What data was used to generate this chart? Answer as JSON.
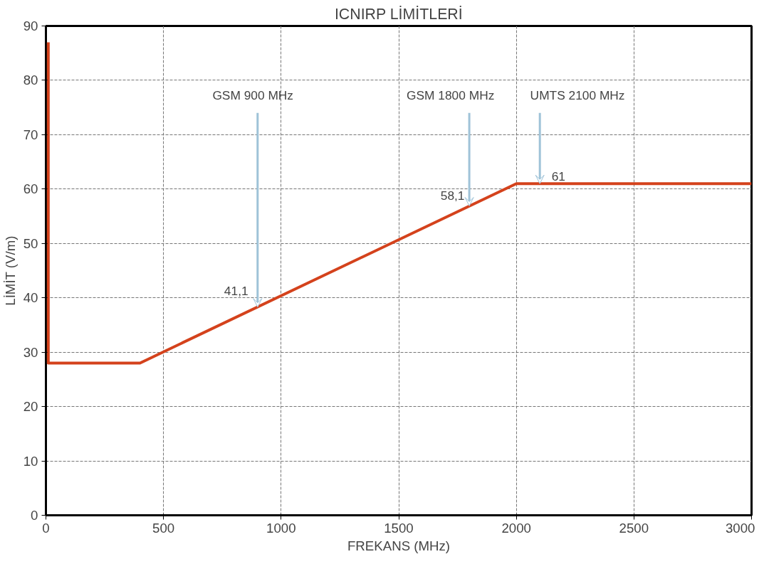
{
  "chart_data": {
    "type": "line",
    "title": "ICNIRP LİMİTLERİ",
    "xlabel": "FREKANS (MHz)",
    "ylabel": "LİMİT (V/m)",
    "series": [
      {
        "color": "#d4421c",
        "x": [
          10,
          10,
          400,
          2000,
          3000
        ],
        "values": [
          87,
          28,
          28,
          61,
          61
        ]
      }
    ],
    "xlim": [
      0,
      3000
    ],
    "ylim": [
      0,
      90
    ],
    "xticks": [
      0,
      500,
      1000,
      1500,
      2000,
      2500,
      3000
    ],
    "yticks": [
      0,
      10,
      20,
      30,
      40,
      50,
      60,
      70,
      80,
      90
    ],
    "grid": true,
    "marker": "none",
    "line_style": "solid",
    "annotations": [
      {
        "text": "GSM 900 MHz",
        "x": 900,
        "y": 38.3
      },
      "41,1",
      {
        "text": "GSM 1800 MHz",
        "x": 1800,
        "y": 56.9
      },
      "58,1",
      {
        "text": "UMTS 2100 MHz",
        "x": 2100,
        "y": 61
      },
      "61"
    ]
  }
}
